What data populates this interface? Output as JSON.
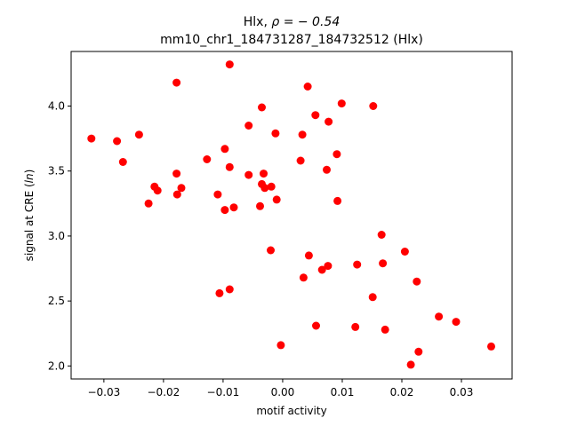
{
  "chart_data": {
    "type": "scatter",
    "title_line1_prefix": "Hlx, ",
    "title_line1_rho": "ρ = − 0.54",
    "title_line2": "mm10_chr1_184731287_184732512 (Hlx)",
    "xlabel": "motif activity",
    "ylabel_prefix": "signal at CRE (",
    "ylabel_italic": "ln",
    "ylabel_suffix": ")",
    "xlim": [
      -0.0355,
      0.0385
    ],
    "ylim": [
      1.9,
      4.42
    ],
    "x_ticks": [
      -0.03,
      -0.02,
      -0.01,
      0.0,
      0.01,
      0.02,
      0.03
    ],
    "x_tick_labels": [
      "−0.03",
      "−0.02",
      "−0.01",
      "0.00",
      "0.01",
      "0.02",
      "0.03"
    ],
    "y_ticks": [
      2.0,
      2.5,
      3.0,
      3.5,
      4.0
    ],
    "y_tick_labels": [
      "2.0",
      "2.5",
      "3.0",
      "3.5",
      "4.0"
    ],
    "grid": false,
    "marker_color": "#ff0000",
    "points": [
      {
        "x": -0.0321,
        "y": 3.75
      },
      {
        "x": -0.0278,
        "y": 3.73
      },
      {
        "x": -0.0268,
        "y": 3.57
      },
      {
        "x": -0.0241,
        "y": 3.78
      },
      {
        "x": -0.0225,
        "y": 3.25
      },
      {
        "x": -0.0215,
        "y": 3.38
      },
      {
        "x": -0.021,
        "y": 3.35
      },
      {
        "x": -0.0178,
        "y": 4.18
      },
      {
        "x": -0.0178,
        "y": 3.48
      },
      {
        "x": -0.0177,
        "y": 3.32
      },
      {
        "x": -0.017,
        "y": 3.37
      },
      {
        "x": -0.0127,
        "y": 3.59
      },
      {
        "x": -0.0109,
        "y": 3.32
      },
      {
        "x": -0.0106,
        "y": 2.56
      },
      {
        "x": -0.0097,
        "y": 3.67
      },
      {
        "x": -0.0097,
        "y": 3.2
      },
      {
        "x": -0.0089,
        "y": 4.32
      },
      {
        "x": -0.0089,
        "y": 3.53
      },
      {
        "x": -0.0089,
        "y": 2.59
      },
      {
        "x": -0.0082,
        "y": 3.22
      },
      {
        "x": -0.0057,
        "y": 3.85
      },
      {
        "x": -0.0057,
        "y": 3.47
      },
      {
        "x": -0.0038,
        "y": 3.23
      },
      {
        "x": -0.0035,
        "y": 3.99
      },
      {
        "x": -0.0035,
        "y": 3.4
      },
      {
        "x": -0.0032,
        "y": 3.48
      },
      {
        "x": -0.003,
        "y": 3.37
      },
      {
        "x": -0.002,
        "y": 2.89
      },
      {
        "x": -0.0019,
        "y": 3.38
      },
      {
        "x": -0.0012,
        "y": 3.79
      },
      {
        "x": -0.001,
        "y": 3.28
      },
      {
        "x": -0.0003,
        "y": 2.16
      },
      {
        "x": 0.003,
        "y": 3.58
      },
      {
        "x": 0.0033,
        "y": 3.78
      },
      {
        "x": 0.0035,
        "y": 2.68
      },
      {
        "x": 0.0042,
        "y": 4.15
      },
      {
        "x": 0.0044,
        "y": 2.85
      },
      {
        "x": 0.0055,
        "y": 3.93
      },
      {
        "x": 0.0056,
        "y": 2.31
      },
      {
        "x": 0.0066,
        "y": 2.74
      },
      {
        "x": 0.0074,
        "y": 3.51
      },
      {
        "x": 0.0076,
        "y": 2.77
      },
      {
        "x": 0.0077,
        "y": 3.88
      },
      {
        "x": 0.0091,
        "y": 3.63
      },
      {
        "x": 0.0092,
        "y": 3.27
      },
      {
        "x": 0.0099,
        "y": 4.02
      },
      {
        "x": 0.0122,
        "y": 2.3
      },
      {
        "x": 0.0125,
        "y": 2.78
      },
      {
        "x": 0.0151,
        "y": 2.53
      },
      {
        "x": 0.0152,
        "y": 4.0
      },
      {
        "x": 0.0166,
        "y": 3.01
      },
      {
        "x": 0.0168,
        "y": 2.79
      },
      {
        "x": 0.0172,
        "y": 2.28
      },
      {
        "x": 0.0205,
        "y": 2.88
      },
      {
        "x": 0.0215,
        "y": 2.01
      },
      {
        "x": 0.0225,
        "y": 2.65
      },
      {
        "x": 0.0228,
        "y": 2.11
      },
      {
        "x": 0.0262,
        "y": 2.38
      },
      {
        "x": 0.0291,
        "y": 2.34
      },
      {
        "x": 0.035,
        "y": 2.15
      }
    ]
  }
}
